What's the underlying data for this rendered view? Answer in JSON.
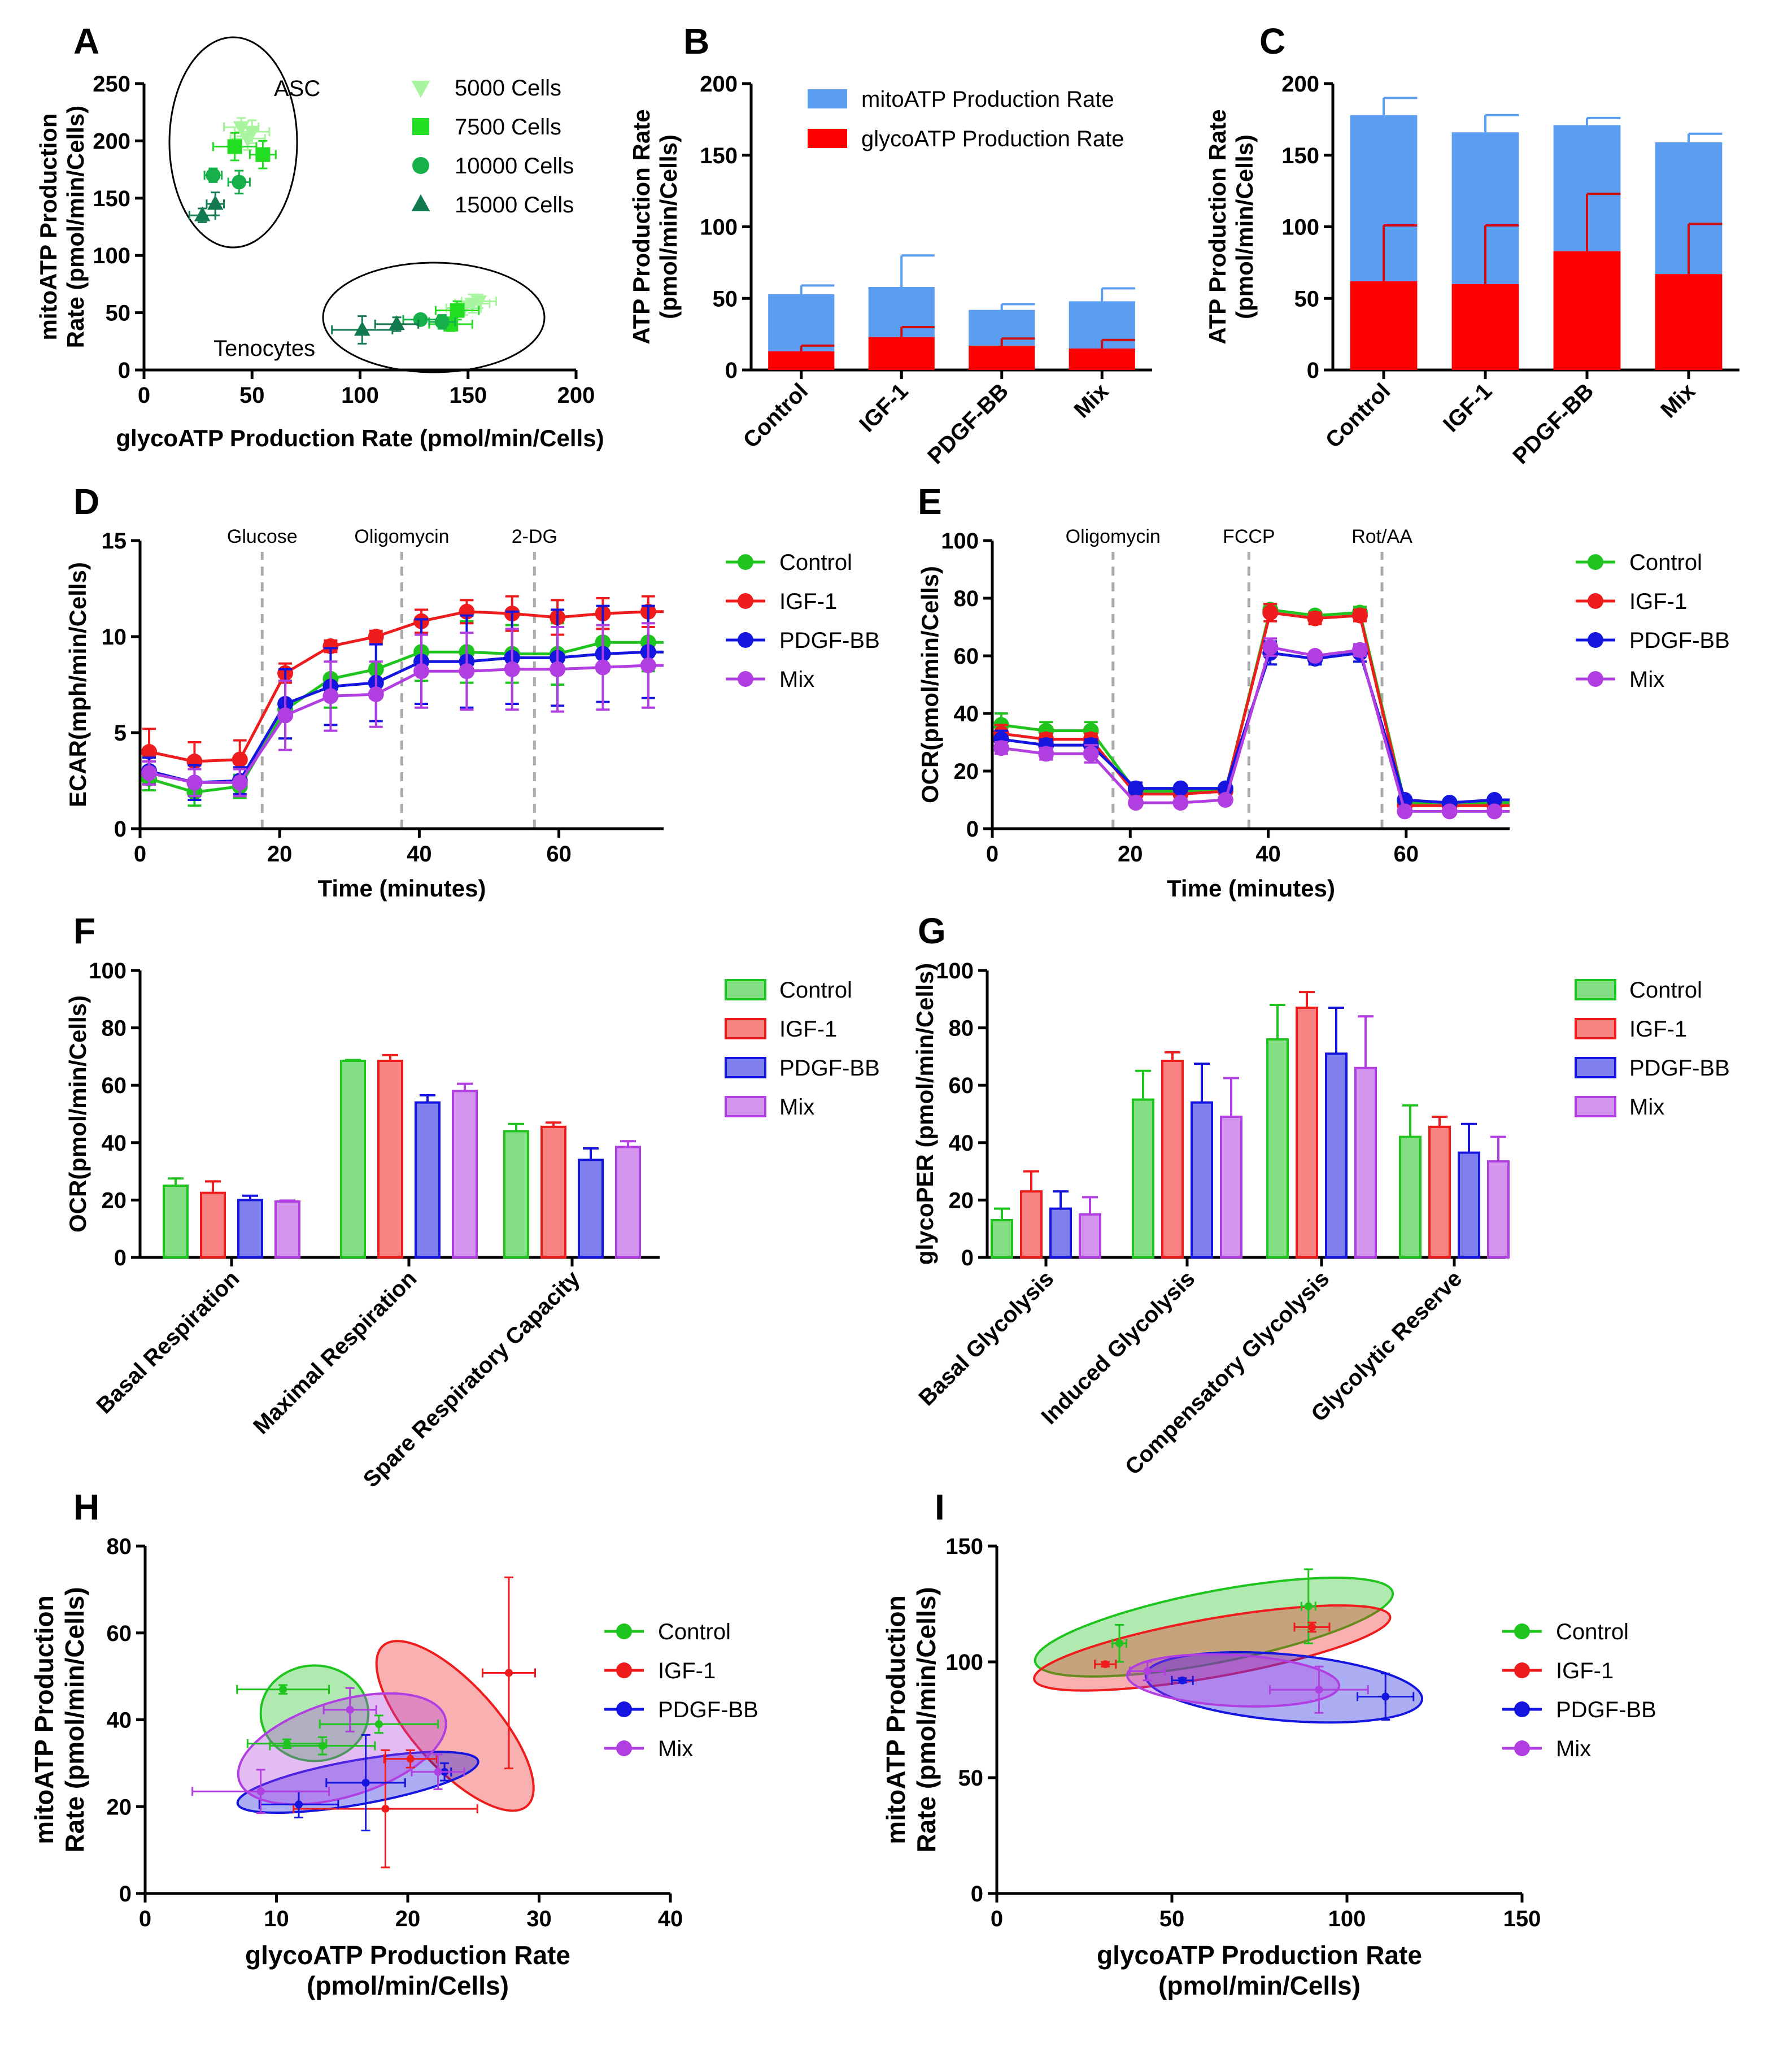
{
  "figure": {
    "panel_letters": [
      "A",
      "B",
      "C",
      "D",
      "E",
      "F",
      "G",
      "H",
      "I"
    ]
  },
  "colors": {
    "control": "#1fc41f",
    "igf1": "#ee1c1c",
    "pdgfbb": "#1515e0",
    "mix": "#b13ee0",
    "mito_bar": "#5b9df0",
    "glyco_bar": "#ff0000",
    "c5000": "#a9f59f",
    "c7500": "#22dd22",
    "c10000": "#16b04a",
    "c15000": "#137a4f",
    "vline": "#aaaaaa"
  },
  "chart_data": [
    {
      "id": "A",
      "type": "scatter",
      "title": "",
      "xlabel": "glycoATP Production Rate (pmol/min/Cells)",
      "ylabel": [
        "mitoATP Production",
        "Rate (pmol/min/Cells)"
      ],
      "xlim": [
        0,
        200
      ],
      "ylim": [
        0,
        250
      ],
      "xticks": [
        "0",
        "50",
        "100",
        "150",
        "200"
      ],
      "yticks": [
        "0",
        "50",
        "100",
        "150",
        "200",
        "250"
      ],
      "annotations": [
        "ASC",
        "Tenocytes"
      ],
      "series": [
        {
          "name": "5000 Cells",
          "marker": "tri-down",
          "color": "c5000",
          "points": [
            [
              45,
              212,
              8,
              8
            ],
            [
              50,
              208,
              8,
              10
            ],
            [
              48,
              202,
              8,
              10
            ],
            [
              152,
              58,
              8,
              8
            ],
            [
              155,
              60,
              8,
              6
            ],
            [
              148,
              54,
              8,
              6
            ]
          ]
        },
        {
          "name": "7500 Cells",
          "marker": "square",
          "color": "c7500",
          "points": [
            [
              42,
              195,
              10,
              12
            ],
            [
              55,
              188,
              6,
              12
            ],
            [
              145,
              52,
              10,
              8
            ],
            [
              142,
              40,
              10,
              6
            ]
          ]
        },
        {
          "name": "10000 Cells",
          "marker": "circle",
          "color": "c10000",
          "points": [
            [
              32,
              170,
              4,
              6
            ],
            [
              44,
              164,
              5,
              10
            ],
            [
              128,
              44,
              8,
              4
            ],
            [
              138,
              42,
              6,
              6
            ]
          ]
        },
        {
          "name": "15000 Cells",
          "marker": "tri-up",
          "color": "c15000",
          "points": [
            [
              27,
              135,
              6,
              6
            ],
            [
              33,
              145,
              4,
              10
            ],
            [
              101,
              35,
              14,
              12
            ],
            [
              117,
              40,
              10,
              6
            ]
          ]
        }
      ]
    },
    {
      "id": "B",
      "type": "bar",
      "ylabel": [
        "ATP Production Rate",
        "(pmol/min/Cells)"
      ],
      "ylim": [
        0,
        200
      ],
      "yticks": [
        "0",
        "50",
        "100",
        "150",
        "200"
      ],
      "categories": [
        "Control",
        "IGF-1",
        "PDGF-BB",
        "Mix"
      ],
      "series": [
        {
          "name": "mitoATP Production Rate",
          "color": "mito_bar",
          "totals": [
            53,
            58,
            42,
            48
          ],
          "errors": [
            6,
            22,
            4,
            9
          ]
        },
        {
          "name": "glycoATP Production Rate",
          "color": "glyco_bar",
          "values": [
            13,
            23,
            17,
            15
          ],
          "errors": [
            4,
            7,
            5,
            6
          ]
        }
      ]
    },
    {
      "id": "C",
      "type": "bar",
      "ylabel": [
        "ATP Production Rate",
        "(pmol/min/Cells)"
      ],
      "ylim": [
        0,
        200
      ],
      "yticks": [
        "0",
        "50",
        "100",
        "150",
        "200"
      ],
      "categories": [
        "Control",
        "IGF-1",
        "PDGF-BB",
        "Mix"
      ],
      "series": [
        {
          "name": "mitoATP Production Rate",
          "color": "mito_bar",
          "totals": [
            178,
            166,
            171,
            159
          ],
          "errors": [
            12,
            12,
            5,
            6
          ]
        },
        {
          "name": "glycoATP Production Rate",
          "color": "glyco_bar",
          "values": [
            62,
            60,
            83,
            67
          ],
          "errors": [
            39,
            41,
            40,
            35
          ]
        }
      ]
    },
    {
      "id": "D",
      "type": "line",
      "xlabel": "Time (minutes)",
      "ylabel": "ECAR(mph/min/Cells)",
      "xlim": [
        0,
        75
      ],
      "ylim": [
        0,
        15
      ],
      "xticks": [
        "0",
        "20",
        "40",
        "60"
      ],
      "yticks": [
        "0",
        "5",
        "10",
        "15"
      ],
      "vlines": [
        {
          "x": 17.5,
          "label": "Glucose"
        },
        {
          "x": 37.5,
          "label": "Oligomycin"
        },
        {
          "x": 56.5,
          "label": "2-DG"
        }
      ],
      "x": [
        1.3,
        7.8,
        14.3,
        20.8,
        27.3,
        33.8,
        40.3,
        46.8,
        53.3,
        59.8,
        66.3,
        72.8
      ],
      "series": [
        {
          "name": "Control",
          "color": "control",
          "values": [
            2.6,
            1.9,
            2.2,
            6.2,
            7.8,
            8.3,
            9.2,
            9.2,
            9.1,
            9.1,
            9.7,
            9.7
          ],
          "errors": [
            0.6,
            0.7,
            0.6,
            1.5,
            1.5,
            1.5,
            1.5,
            1.6,
            1.5,
            1.6,
            1.5,
            1.5
          ]
        },
        {
          "name": "IGF-1",
          "color": "igf1",
          "values": [
            4.0,
            3.5,
            3.6,
            8.1,
            9.5,
            10.0,
            10.8,
            11.3,
            11.2,
            11.0,
            11.2,
            11.3
          ],
          "errors": [
            1.2,
            1.0,
            1.0,
            0.5,
            0.3,
            0.3,
            0.6,
            0.6,
            0.9,
            0.9,
            0.8,
            0.8
          ]
        },
        {
          "name": "PDGF-BB",
          "color": "pdgfbb",
          "values": [
            3.0,
            2.4,
            2.5,
            6.5,
            7.4,
            7.6,
            8.7,
            8.7,
            8.9,
            8.9,
            9.1,
            9.2
          ],
          "errors": [
            0.7,
            0.9,
            0.7,
            1.8,
            2.0,
            2.0,
            2.2,
            2.4,
            2.4,
            2.5,
            2.5,
            2.4
          ]
        },
        {
          "name": "Mix",
          "color": "mix",
          "values": [
            2.9,
            2.4,
            2.4,
            5.9,
            6.9,
            7.0,
            8.2,
            8.2,
            8.3,
            8.3,
            8.4,
            8.5
          ],
          "errors": [
            0.6,
            0.7,
            0.7,
            1.8,
            1.8,
            1.7,
            1.9,
            2.0,
            2.1,
            2.2,
            2.2,
            2.2
          ]
        }
      ]
    },
    {
      "id": "E",
      "type": "line",
      "xlabel": "Time (minutes)",
      "ylabel": "OCR(pmol/min/Cells)",
      "xlim": [
        0,
        75
      ],
      "ylim": [
        0,
        100
      ],
      "xticks": [
        "0",
        "20",
        "40",
        "60"
      ],
      "yticks": [
        "0",
        "20",
        "40",
        "60",
        "80",
        "100"
      ],
      "vlines": [
        {
          "x": 17.5,
          "label": "Oligomycin"
        },
        {
          "x": 37.2,
          "label": "FCCP"
        },
        {
          "x": 56.5,
          "label": "Rot/AA"
        }
      ],
      "x": [
        1.3,
        7.8,
        14.3,
        20.8,
        27.3,
        33.8,
        40.3,
        46.8,
        53.3,
        59.8,
        66.3,
        72.8
      ],
      "series": [
        {
          "name": "Control",
          "color": "control",
          "values": [
            36,
            34,
            34,
            13,
            13,
            13,
            76,
            74,
            75,
            9,
            9,
            9
          ],
          "errors": [
            4,
            3,
            3,
            1,
            1,
            1,
            2,
            1,
            2,
            1,
            1,
            1
          ]
        },
        {
          "name": "IGF-1",
          "color": "igf1",
          "values": [
            33,
            31,
            31,
            12,
            12,
            13,
            75,
            73,
            74,
            8,
            8,
            8
          ],
          "errors": [
            3,
            2,
            2,
            1,
            1,
            1,
            3,
            2,
            2,
            1,
            1,
            1
          ]
        },
        {
          "name": "PDGF-BB",
          "color": "pdgfbb",
          "values": [
            31,
            29,
            29,
            14,
            14,
            14,
            61,
            59,
            61,
            10,
            9,
            10
          ],
          "errors": [
            3,
            2,
            2,
            2,
            1,
            1,
            4,
            2,
            3,
            1,
            1,
            1
          ]
        },
        {
          "name": "Mix",
          "color": "mix",
          "values": [
            28,
            26,
            26,
            9,
            9,
            10,
            63,
            60,
            62,
            6,
            6,
            6
          ],
          "errors": [
            2,
            2,
            3,
            1,
            1,
            1,
            3,
            1,
            2,
            1,
            1,
            1
          ]
        }
      ]
    },
    {
      "id": "F",
      "type": "bar",
      "ylabel": "OCR(pmol/min/Cells)",
      "ylim": [
        0,
        100
      ],
      "yticks": [
        "0",
        "20",
        "40",
        "60",
        "80",
        "100"
      ],
      "categories": [
        "Basal Respiration",
        "Maximal Respiration",
        "Spare Respiratory Capacity"
      ],
      "series": [
        {
          "name": "Control",
          "color": "control",
          "values": [
            25,
            68.5,
            44
          ],
          "errors": [
            2.5,
            0.3,
            2.5
          ]
        },
        {
          "name": "IGF-1",
          "color": "igf1",
          "values": [
            22.5,
            68.5,
            45.5
          ],
          "errors": [
            4,
            2,
            1.5
          ]
        },
        {
          "name": "PDGF-BB",
          "color": "pdgfbb",
          "values": [
            20,
            54,
            34
          ],
          "errors": [
            1.5,
            2.5,
            4
          ]
        },
        {
          "name": "Mix",
          "color": "mix",
          "values": [
            19.5,
            58,
            38.5
          ],
          "errors": [
            0.3,
            2.5,
            2
          ]
        }
      ]
    },
    {
      "id": "G",
      "type": "bar",
      "ylabel": "glycoPER (pmol/min/Cells)",
      "ylim": [
        0,
        100
      ],
      "yticks": [
        "0",
        "20",
        "40",
        "60",
        "80",
        "100"
      ],
      "categories": [
        "Basal Glycolysis",
        "Induced Glycolysis",
        "Compensatory Glycolysis",
        "Glycolytic Reserve"
      ],
      "series": [
        {
          "name": "Control",
          "color": "control",
          "values": [
            13,
            55,
            76,
            42
          ],
          "errors": [
            4,
            10,
            12,
            11
          ]
        },
        {
          "name": "IGF-1",
          "color": "igf1",
          "values": [
            23,
            68.5,
            87,
            45.5
          ],
          "errors": [
            7,
            3,
            5.5,
            3.5
          ]
        },
        {
          "name": "PDGF-BB",
          "color": "pdgfbb",
          "values": [
            17,
            54,
            71,
            36.5
          ],
          "errors": [
            6,
            13.5,
            16,
            10
          ]
        },
        {
          "name": "Mix",
          "color": "mix",
          "values": [
            15,
            49,
            66,
            33.5
          ],
          "errors": [
            6,
            13.5,
            18,
            8.5
          ]
        }
      ]
    },
    {
      "id": "H",
      "type": "scatter",
      "xlabel": [
        "glycoATP Production Rate",
        "(pmol/min/Cells)"
      ],
      "ylabel": [
        "mitoATP Production",
        "Rate (pmol/min/Cells)"
      ],
      "xlim": [
        0,
        40
      ],
      "ylim": [
        0,
        80
      ],
      "xticks": [
        "0",
        "10",
        "20",
        "30",
        "40"
      ],
      "yticks": [
        "0",
        "20",
        "40",
        "60",
        "80"
      ],
      "series": [
        {
          "name": "Control",
          "color": "control",
          "points": [
            [
              10.5,
              47,
              3.5,
              1
            ],
            [
              10.8,
              34.5,
              3,
              1
            ],
            [
              13.5,
              34,
              4,
              2
            ],
            [
              17.8,
              39,
              4.5,
              2
            ]
          ],
          "ellipse": {
            "cx": 12.9,
            "cy": 41.5,
            "rx": 4.1,
            "ry": 11,
            "angle": 0
          }
        },
        {
          "name": "IGF-1",
          "color": "igf1",
          "points": [
            [
              18.3,
              19.5,
              7,
              13.5
            ],
            [
              27.7,
              50.8,
              2,
              22
            ],
            [
              20.2,
              31,
              2,
              2
            ]
          ],
          "ellipse": {
            "cx": 23.6,
            "cy": 38.6,
            "rx": 3.2,
            "ry": 24.8,
            "angle": 42
          }
        },
        {
          "name": "PDGF-BB",
          "color": "pdgfbb",
          "points": [
            [
              11.7,
              20.5,
              3,
              3
            ],
            [
              16.8,
              25.5,
              3,
              11
            ],
            [
              22.8,
              28,
              0.5,
              2
            ]
          ],
          "ellipse": {
            "cx": 16.2,
            "cy": 25.6,
            "rx": 9.3,
            "ry": 5.1,
            "angle": 10
          }
        },
        {
          "name": "Mix",
          "color": "mix",
          "points": [
            [
              8.8,
              23.5,
              5.2,
              5
            ],
            [
              15.6,
              42.3,
              2,
              5
            ],
            [
              22.3,
              28,
              2,
              4
            ]
          ],
          "ellipse": {
            "cx": 15,
            "cy": 33.3,
            "rx": 8.2,
            "ry": 11,
            "angle": 17
          }
        }
      ]
    },
    {
      "id": "I",
      "type": "scatter",
      "xlabel": [
        "glycoATP Production Rate",
        "(pmol/min/Cells)"
      ],
      "ylabel": [
        "mitoATP Production",
        "Rate (pmol/min/Cells)"
      ],
      "xlim": [
        0,
        150
      ],
      "ylim": [
        0,
        150
      ],
      "xticks": [
        "0",
        "50",
        "100",
        "150"
      ],
      "yticks": [
        "0",
        "50",
        "100",
        "150"
      ],
      "series": [
        {
          "name": "Control",
          "color": "control",
          "points": [
            [
              35,
              108,
              2,
              8
            ],
            [
              89,
              124,
              2,
              16
            ]
          ],
          "ellipse": {
            "cx": 62,
            "cy": 115,
            "rx": 52,
            "ry": 15.4,
            "angle": 11
          }
        },
        {
          "name": "IGF-1",
          "color": "igf1",
          "points": [
            [
              31,
              99,
              3,
              1
            ],
            [
              90,
              115,
              5,
              2
            ]
          ],
          "ellipse": {
            "cx": 61.5,
            "cy": 106,
            "rx": 51.6,
            "ry": 12.6,
            "angle": 10
          }
        },
        {
          "name": "PDGF-BB",
          "color": "pdgfbb",
          "points": [
            [
              53,
              92,
              3,
              1
            ],
            [
              111,
              85,
              8,
              10
            ]
          ],
          "ellipse": {
            "cx": 82,
            "cy": 89,
            "rx": 39.6,
            "ry": 14.3,
            "angle": -5
          }
        },
        {
          "name": "Mix",
          "color": "mix",
          "points": [
            [
              43,
              96,
              5,
              4
            ],
            [
              92,
              88,
              14,
              10
            ]
          ],
          "ellipse": {
            "cx": 67.5,
            "cy": 92,
            "rx": 30.3,
            "ry": 11,
            "angle": -3
          }
        }
      ]
    }
  ]
}
